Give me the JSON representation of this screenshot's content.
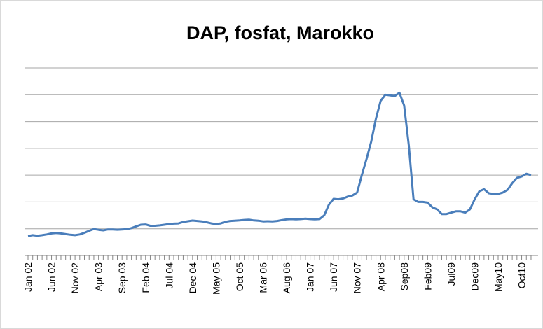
{
  "chart_data": {
    "type": "line",
    "title": "DAP, fosfat, Marokko",
    "categories": [
      "Jan 02",
      null,
      null,
      null,
      null,
      "Jun 02",
      null,
      null,
      null,
      null,
      "Nov 02",
      null,
      null,
      null,
      null,
      "Apr 03",
      null,
      null,
      null,
      null,
      "Sep 03",
      null,
      null,
      null,
      null,
      "Feb 04",
      null,
      null,
      null,
      null,
      "Jul 04",
      null,
      null,
      null,
      null,
      "Dec 04",
      null,
      null,
      null,
      null,
      "May 05",
      null,
      null,
      null,
      null,
      "Oct 05",
      null,
      null,
      null,
      null,
      "Mar 06",
      null,
      null,
      null,
      null,
      "Aug 06",
      null,
      null,
      null,
      null,
      "Jan 07",
      null,
      null,
      null,
      null,
      "Jun 07",
      null,
      null,
      null,
      null,
      "Nov 07",
      null,
      null,
      null,
      null,
      "Apr 08",
      null,
      null,
      null,
      null,
      "Sep08",
      null,
      null,
      null,
      null,
      "Feb09",
      null,
      null,
      null,
      null,
      "Jul09",
      null,
      null,
      null,
      null,
      "Dec09",
      null,
      null,
      null,
      null,
      "May10",
      null,
      null,
      null,
      null,
      "Oct10",
      null,
      null
    ],
    "series": [
      {
        "color": "#4a7ebb",
        "values": [
          146,
          152,
          148,
          152,
          158,
          165,
          168,
          165,
          160,
          155,
          152,
          158,
          170,
          185,
          198,
          192,
          188,
          195,
          195,
          193,
          195,
          197,
          205,
          218,
          230,
          232,
          222,
          222,
          225,
          230,
          235,
          238,
          240,
          250,
          256,
          261,
          258,
          255,
          248,
          240,
          235,
          240,
          252,
          258,
          260,
          262,
          266,
          268,
          262,
          260,
          255,
          256,
          255,
          258,
          265,
          270,
          272,
          270,
          272,
          276,
          272,
          270,
          272,
          300,
          380,
          423,
          420,
          426,
          440,
          448,
          470,
          600,
          720,
          850,
          1020,
          1155,
          1200,
          1195,
          1190,
          1215,
          1120,
          820,
          420,
          400,
          400,
          395,
          360,
          345,
          310,
          310,
          320,
          330,
          330,
          320,
          345,
          420,
          480,
          495,
          465,
          460,
          460,
          470,
          490,
          540,
          580,
          590,
          610,
          600
        ]
      }
    ],
    "ylim": [
      0,
      1400
    ],
    "yticks": [
      0,
      200,
      400,
      600,
      800,
      1000,
      1200,
      1400
    ],
    "grid": true
  }
}
